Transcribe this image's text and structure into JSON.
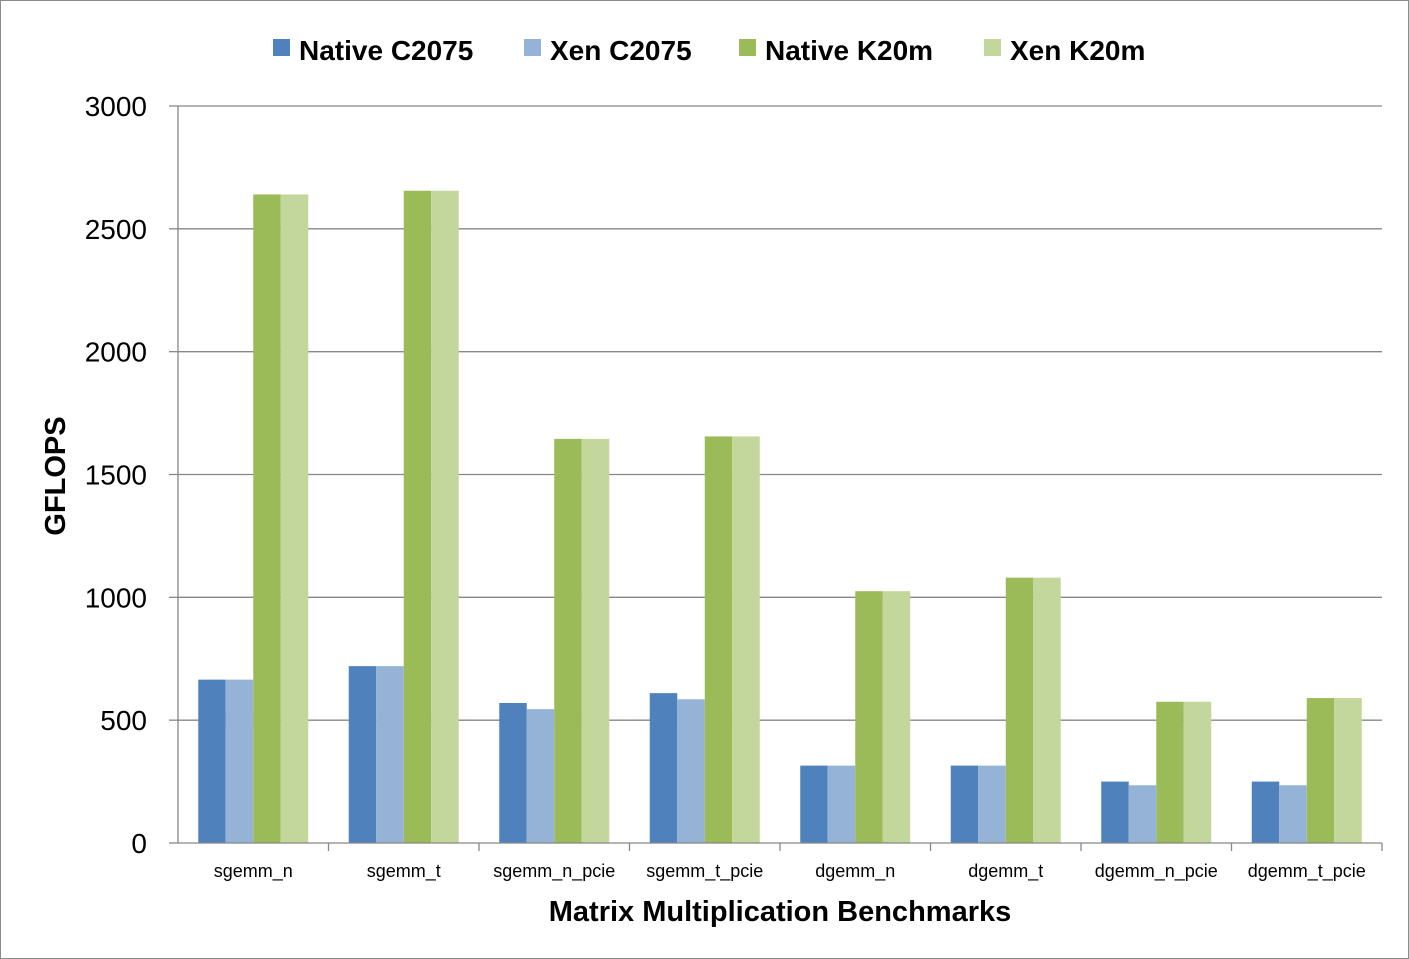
{
  "chart_data": {
    "type": "bar",
    "title": "",
    "xlabel": "Matrix Multiplication Benchmarks",
    "ylabel": "GFLOPS",
    "ylim": [
      0,
      3000
    ],
    "yticks": [
      0,
      500,
      1000,
      1500,
      2000,
      2500,
      3000
    ],
    "grid": true,
    "legend_position": "top",
    "categories": [
      "sgemm_n",
      "sgemm_t",
      "sgemm_n_pcie",
      "sgemm_t_pcie",
      "dgemm_n",
      "dgemm_t",
      "dgemm_n_pcie",
      "dgemm_t_pcie"
    ],
    "series": [
      {
        "name": "Native C2075",
        "color": "#4f81bd",
        "values": [
          665,
          720,
          570,
          610,
          315,
          315,
          250,
          250
        ]
      },
      {
        "name": "Xen C2075",
        "color": "#95b3d7",
        "values": [
          665,
          720,
          545,
          585,
          315,
          315,
          235,
          235
        ]
      },
      {
        "name": "Native K20m",
        "color": "#9bbb59",
        "values": [
          2640,
          2655,
          1645,
          1655,
          1025,
          1080,
          575,
          590
        ]
      },
      {
        "name": "Xen K20m",
        "color": "#c3d69b",
        "values": [
          2640,
          2655,
          1645,
          1655,
          1025,
          1080,
          575,
          590
        ]
      }
    ],
    "colors": {
      "grid": "#878787",
      "axis": "#878787"
    }
  }
}
